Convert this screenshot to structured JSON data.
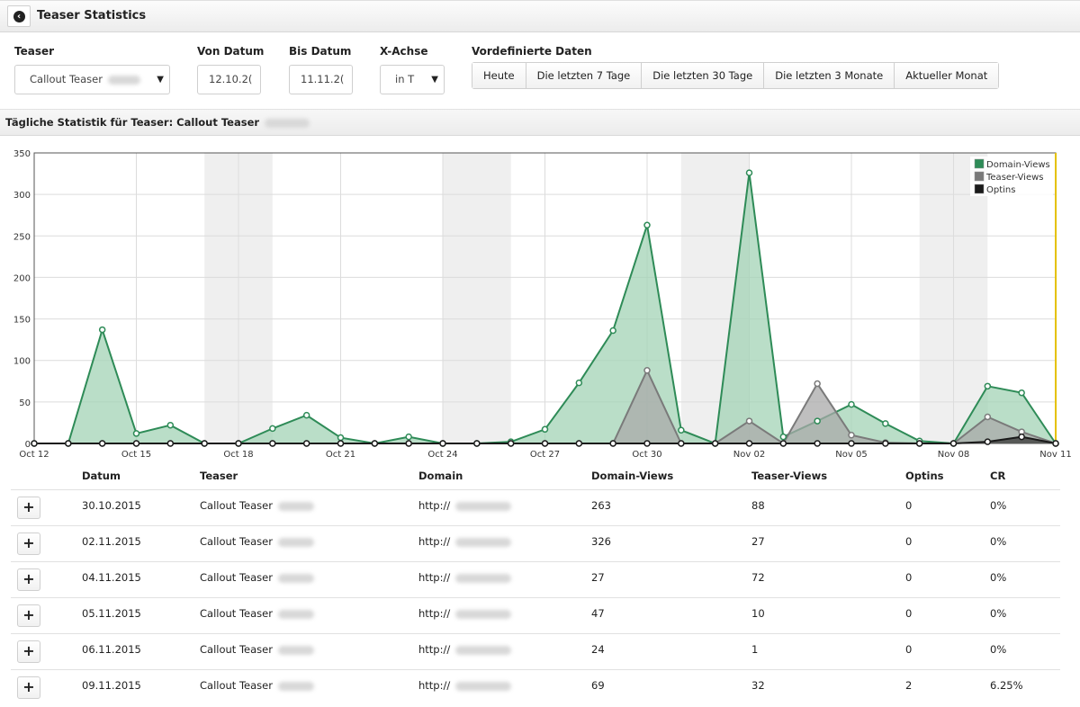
{
  "header": {
    "title": "Teaser Statistics",
    "back_icon": "arrow-left-circle-icon"
  },
  "filters": {
    "teaser_label": "Teaser",
    "teaser_value": "Callout Teaser",
    "from_label": "Von Datum",
    "from_value": "12.10.2(",
    "to_label": "Bis Datum",
    "to_value": "11.11.2(",
    "xaxis_label": "X-Achse",
    "xaxis_value": "in T",
    "presets_label": "Vordefinierte Daten",
    "presets": [
      "Heute",
      "Die letzten 7 Tage",
      "Die letzten 30 Tage",
      "Die letzten 3 Monate",
      "Aktueller Monat"
    ]
  },
  "subheader": {
    "title": "Tägliche Statistik für Teaser: Callout Teaser"
  },
  "chart_data": {
    "type": "area",
    "x": [
      "Oct 12",
      "Oct 13",
      "Oct 14",
      "Oct 15",
      "Oct 16",
      "Oct 17",
      "Oct 18",
      "Oct 19",
      "Oct 20",
      "Oct 21",
      "Oct 22",
      "Oct 23",
      "Oct 24",
      "Oct 25",
      "Oct 26",
      "Oct 27",
      "Oct 28",
      "Oct 29",
      "Oct 30",
      "Oct 31",
      "Nov 01",
      "Nov 02",
      "Nov 03",
      "Nov 04",
      "Nov 05",
      "Nov 06",
      "Nov 07",
      "Nov 08",
      "Nov 09",
      "Nov 10",
      "Nov 11"
    ],
    "x_ticks": [
      "Oct 12",
      "Oct 15",
      "Oct 18",
      "Oct 21",
      "Oct 24",
      "Oct 27",
      "Oct 30",
      "Nov 02",
      "Nov 05",
      "Nov 08",
      "Nov 11"
    ],
    "ylim": [
      0,
      350
    ],
    "y_ticks": [
      0,
      50,
      100,
      150,
      200,
      250,
      300,
      350
    ],
    "grid": true,
    "legend_position": "top-right",
    "weekend_bands": [
      [
        "Oct 17",
        "Oct 19"
      ],
      [
        "Oct 24",
        "Oct 26"
      ],
      [
        "Oct 31",
        "Nov 02"
      ],
      [
        "Nov 07",
        "Nov 09"
      ]
    ],
    "series": [
      {
        "name": "Domain-Views",
        "color": "#2e8b57",
        "fill": "#a3d3b5",
        "values": [
          0,
          0,
          137,
          12,
          22,
          0,
          0,
          18,
          34,
          7,
          0,
          8,
          0,
          0,
          2,
          17,
          73,
          136,
          263,
          16,
          0,
          326,
          8,
          27,
          47,
          24,
          3,
          0,
          69,
          61,
          0
        ]
      },
      {
        "name": "Teaser-Views",
        "color": "#7a7a7a",
        "fill": "#a9a9a9",
        "values": [
          0,
          0,
          0,
          0,
          0,
          0,
          0,
          0,
          0,
          0,
          0,
          0,
          0,
          0,
          0,
          0,
          0,
          0,
          88,
          0,
          0,
          27,
          0,
          72,
          10,
          1,
          0,
          0,
          32,
          14,
          0
        ]
      },
      {
        "name": "Optins",
        "color": "#1a1a1a",
        "fill": "#3a3a3a",
        "values": [
          0,
          0,
          0,
          0,
          0,
          0,
          0,
          0,
          0,
          0,
          0,
          0,
          0,
          0,
          0,
          0,
          0,
          0,
          0,
          0,
          0,
          0,
          0,
          0,
          0,
          0,
          0,
          0,
          2,
          8,
          0
        ]
      }
    ]
  },
  "table": {
    "headers": {
      "datum": "Datum",
      "teaser": "Teaser",
      "domain": "Domain",
      "domain_views": "Domain-Views",
      "teaser_views": "Teaser-Views",
      "optins": "Optins",
      "cr": "CR"
    },
    "expand_label": "+",
    "rows": [
      {
        "datum": "30.10.2015",
        "teaser": "Callout Teaser",
        "domain": "http://",
        "domain_views": "263",
        "teaser_views": "88",
        "optins": "0",
        "cr": "0%"
      },
      {
        "datum": "02.11.2015",
        "teaser": "Callout Teaser",
        "domain": "http://",
        "domain_views": "326",
        "teaser_views": "27",
        "optins": "0",
        "cr": "0%"
      },
      {
        "datum": "04.11.2015",
        "teaser": "Callout Teaser",
        "domain": "http://",
        "domain_views": "27",
        "teaser_views": "72",
        "optins": "0",
        "cr": "0%"
      },
      {
        "datum": "05.11.2015",
        "teaser": "Callout Teaser",
        "domain": "http://",
        "domain_views": "47",
        "teaser_views": "10",
        "optins": "0",
        "cr": "0%"
      },
      {
        "datum": "06.11.2015",
        "teaser": "Callout Teaser",
        "domain": "http://",
        "domain_views": "24",
        "teaser_views": "1",
        "optins": "0",
        "cr": "0%"
      },
      {
        "datum": "09.11.2015",
        "teaser": "Callout Teaser",
        "domain": "http://",
        "domain_views": "69",
        "teaser_views": "32",
        "optins": "2",
        "cr": "6.25%"
      }
    ]
  }
}
